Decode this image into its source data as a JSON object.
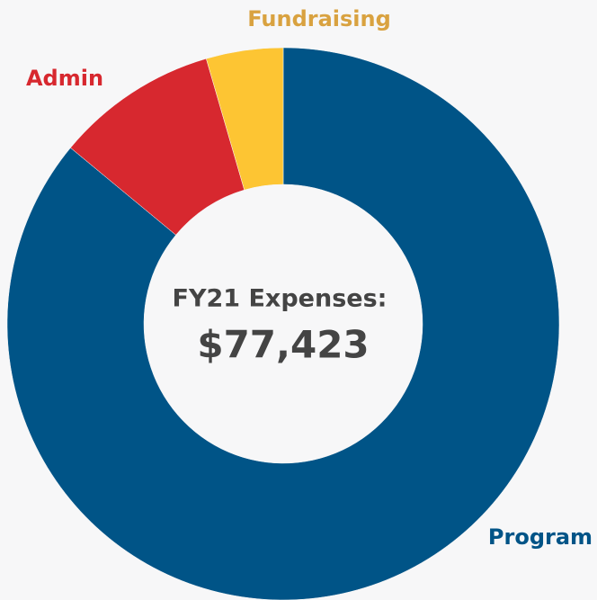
{
  "chart_data": {
    "type": "donut",
    "center_title": "FY21 Expenses:",
    "center_value": "$77,423",
    "categories": [
      "Program",
      "Admin",
      "Fundraising"
    ],
    "values": [
      86,
      9.5,
      4.5
    ],
    "colors": [
      "#005487",
      "#d7282f",
      "#fdc533"
    ],
    "label_colors": [
      "#005487",
      "#d7282f",
      "#d9a240"
    ]
  }
}
